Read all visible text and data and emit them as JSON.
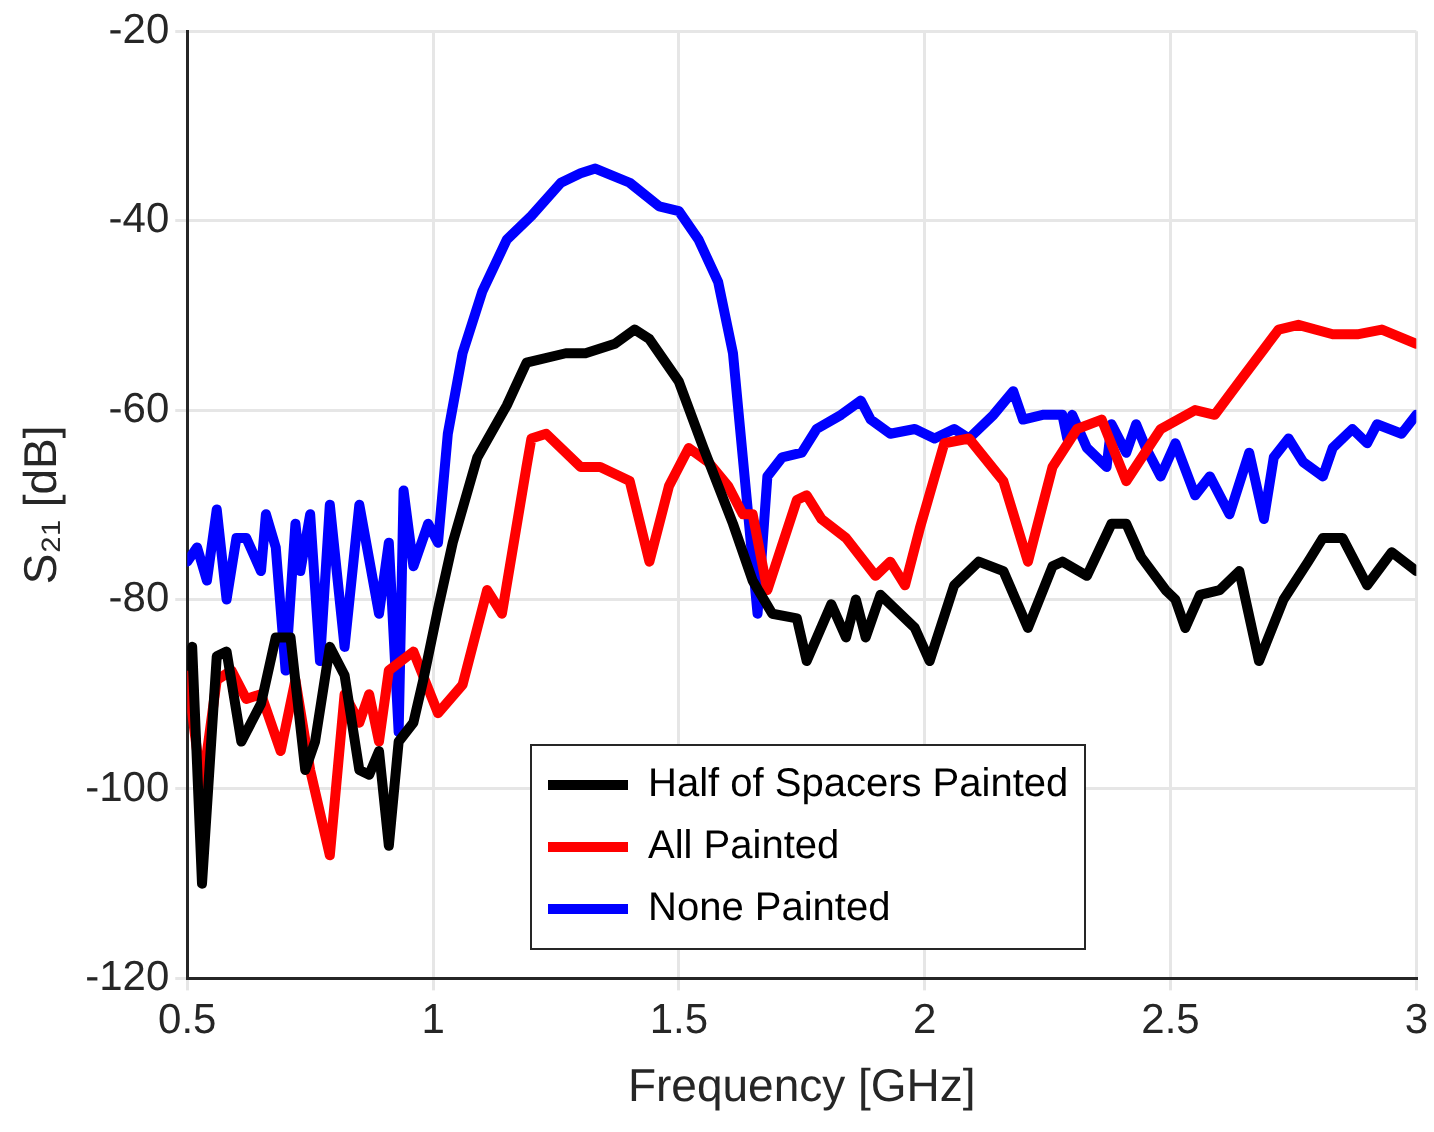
{
  "chart_data": {
    "type": "line",
    "xlabel": "Frequency [GHz]",
    "ylabel": "S₂₁ [dB]",
    "xlim": [
      0.5,
      3
    ],
    "xticks": [
      0.5,
      1,
      1.5,
      2,
      2.5,
      3
    ],
    "ylim": [
      -120,
      -20
    ],
    "yticks": [
      -120,
      -100,
      -80,
      -60,
      -40,
      -20
    ],
    "grid": true,
    "legend": "bottom",
    "marker": "none",
    "line_style": "solid",
    "series": [
      {
        "name": "Half of Spacers Painted",
        "color": "#000000",
        "x": [
          0.5,
          0.51,
          0.53,
          0.56,
          0.58,
          0.61,
          0.65,
          0.68,
          0.71,
          0.74,
          0.76,
          0.79,
          0.82,
          0.85,
          0.87,
          0.89,
          0.91,
          0.93,
          0.96,
          0.98,
          1.01,
          1.04,
          1.09,
          1.15,
          1.19,
          1.27,
          1.31,
          1.37,
          1.41,
          1.44,
          1.5,
          1.55,
          1.61,
          1.65,
          1.69,
          1.74,
          1.76,
          1.81,
          1.84,
          1.86,
          1.88,
          1.91,
          1.98,
          2.01,
          2.06,
          2.11,
          2.16,
          2.21,
          2.26,
          2.28,
          2.33,
          2.38,
          2.41,
          2.44,
          2.49,
          2.51,
          2.53,
          2.56,
          2.6,
          2.64,
          2.68,
          2.73,
          2.78,
          2.81,
          2.85,
          2.9,
          2.95,
          3
        ],
        "values": [
          -87,
          -85,
          -110,
          -86,
          -85.5,
          -95,
          -91,
          -84,
          -84,
          -98,
          -95,
          -85,
          -88,
          -98,
          -98.5,
          -96,
          -106,
          -95,
          -93,
          -88.5,
          -81,
          -74,
          -65,
          -59.5,
          -55,
          -54,
          -54,
          -53,
          -51.5,
          -52.5,
          -57,
          -64,
          -72,
          -78,
          -81.5,
          -82,
          -86.5,
          -80.5,
          -84,
          -80,
          -84,
          -79.5,
          -83,
          -86.5,
          -78.5,
          -76,
          -77,
          -83,
          -76.5,
          -76,
          -77.5,
          -72,
          -72,
          -75.5,
          -79,
          -80,
          -83,
          -79.5,
          -79,
          -77,
          -86.5,
          -80,
          -76,
          -73.5,
          -73.5,
          -78.5,
          -75,
          -77
        ]
      },
      {
        "name": "All Painted",
        "color": "#ff0000",
        "x": [
          0.5,
          0.53,
          0.56,
          0.59,
          0.62,
          0.65,
          0.69,
          0.72,
          0.75,
          0.79,
          0.82,
          0.85,
          0.87,
          0.89,
          0.91,
          0.96,
          1.01,
          1.06,
          1.11,
          1.14,
          1.19,
          1.2,
          1.23,
          1.3,
          1.34,
          1.4,
          1.44,
          1.48,
          1.52,
          1.56,
          1.6,
          1.63,
          1.65,
          1.68,
          1.74,
          1.76,
          1.79,
          1.84,
          1.9,
          1.93,
          1.96,
          1.99,
          2.04,
          2.09,
          2.16,
          2.21,
          2.26,
          2.31,
          2.36,
          2.41,
          2.48,
          2.55,
          2.59,
          2.64,
          2.72,
          2.76,
          2.83,
          2.88,
          2.93,
          3
        ],
        "values": [
          -88,
          -100,
          -88.5,
          -87.5,
          -90.5,
          -90,
          -96,
          -88.5,
          -98,
          -107,
          -90,
          -93,
          -90,
          -95,
          -87.5,
          -85.5,
          -92,
          -89,
          -79,
          -81.5,
          -66,
          -63,
          -62.5,
          -66,
          -66,
          -67.5,
          -76,
          -68,
          -64,
          -65.5,
          -68,
          -71,
          -71,
          -79,
          -69.5,
          -69,
          -71.5,
          -73.5,
          -77.5,
          -76,
          -78.5,
          -72.5,
          -63.5,
          -63,
          -67.5,
          -76,
          -66,
          -62,
          -61,
          -67.5,
          -62,
          -60,
          -60.5,
          -57,
          -51.5,
          -51,
          -52,
          -52,
          -51.5,
          -53
        ]
      },
      {
        "name": "None Painted",
        "color": "#0000ff",
        "x": [
          0.5,
          0.52,
          0.54,
          0.56,
          0.58,
          0.6,
          0.62,
          0.65,
          0.66,
          0.68,
          0.7,
          0.72,
          0.73,
          0.75,
          0.77,
          0.79,
          0.82,
          0.85,
          0.89,
          0.91,
          0.93,
          0.94,
          0.96,
          0.99,
          1.01,
          1.03,
          1.06,
          1.1,
          1.15,
          1.2,
          1.26,
          1.3,
          1.33,
          1.4,
          1.46,
          1.5,
          1.54,
          1.58,
          1.61,
          1.63,
          1.66,
          1.68,
          1.71,
          1.75,
          1.78,
          1.83,
          1.87,
          1.89,
          1.93,
          1.98,
          2.02,
          2.06,
          2.09,
          2.14,
          2.18,
          2.2,
          2.24,
          2.28,
          2.29,
          2.3,
          2.33,
          2.37,
          2.38,
          2.41,
          2.43,
          2.45,
          2.48,
          2.51,
          2.55,
          2.58,
          2.62,
          2.66,
          2.69,
          2.71,
          2.74,
          2.77,
          2.81,
          2.83,
          2.87,
          2.9,
          2.92,
          2.97,
          3
        ],
        "values": [
          -76,
          -74.5,
          -78,
          -70.5,
          -80,
          -73.5,
          -73.5,
          -77,
          -71,
          -74.5,
          -87.5,
          -72,
          -77,
          -71,
          -86.5,
          -70,
          -85,
          -70,
          -81.5,
          -74,
          -94,
          -68.5,
          -76.5,
          -72,
          -74,
          -62.5,
          -54,
          -47.5,
          -42,
          -39.5,
          -36,
          -35,
          -34.5,
          -36,
          -38.5,
          -39,
          -42,
          -46.5,
          -54,
          -65,
          -81.5,
          -67,
          -65,
          -64.5,
          -62,
          -60.5,
          -59,
          -61,
          -62.5,
          -62,
          -63,
          -62,
          -63,
          -60.5,
          -58,
          -61,
          -60.5,
          -60.5,
          -63,
          -60.5,
          -64,
          -66,
          -61.5,
          -64.5,
          -61.5,
          -64,
          -67,
          -63.5,
          -69,
          -67,
          -71,
          -64.5,
          -71.5,
          -65,
          -63,
          -65.5,
          -67,
          -64,
          -62,
          -63.5,
          -61.5,
          -62.5,
          -60.5
        ]
      }
    ]
  }
}
